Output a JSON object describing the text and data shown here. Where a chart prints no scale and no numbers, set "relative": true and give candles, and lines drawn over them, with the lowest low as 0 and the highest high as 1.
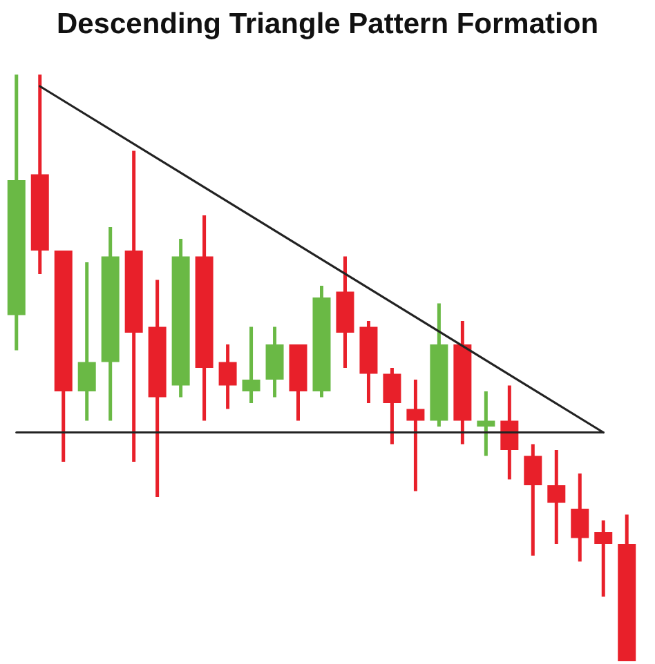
{
  "chart_data": {
    "type": "candlestick",
    "title": "Descending Triangle Pattern Formation",
    "relative": true,
    "categories": [
      null,
      null,
      null,
      null,
      null,
      null,
      null,
      null,
      null,
      null,
      null,
      null,
      null,
      null,
      null,
      null,
      null,
      null,
      null,
      null,
      null,
      null,
      null,
      null,
      null,
      null,
      null
    ],
    "ohlc": [
      [
        0.59,
        1,
        0.53,
        0.82
      ],
      [
        0.83,
        1,
        0.66,
        0.7
      ],
      [
        0.7,
        0.7,
        0.34,
        0.46
      ],
      [
        0.46,
        0.68,
        0.41,
        0.51
      ],
      [
        0.51,
        0.74,
        0.41,
        0.69
      ],
      [
        0.7,
        0.87,
        0.34,
        0.56
      ],
      [
        0.57,
        0.65,
        0.28,
        0.45
      ],
      [
        0.47,
        0.72,
        0.45,
        0.69
      ],
      [
        0.69,
        0.76,
        0.41,
        0.5
      ],
      [
        0.51,
        0.54,
        0.43,
        0.47
      ],
      [
        0.46,
        0.57,
        0.44,
        0.48
      ],
      [
        0.48,
        0.57,
        0.45,
        0.54
      ],
      [
        0.54,
        0.54,
        0.41,
        0.46
      ],
      [
        0.46,
        0.64,
        0.45,
        0.62
      ],
      [
        0.63,
        0.69,
        0.5,
        0.56
      ],
      [
        0.57,
        0.58,
        0.44,
        0.49
      ],
      [
        0.49,
        0.5,
        0.37,
        0.44
      ],
      [
        0.43,
        0.48,
        0.29,
        0.41
      ],
      [
        0.41,
        0.61,
        0.4,
        0.54
      ],
      [
        0.54,
        0.58,
        0.37,
        0.41
      ],
      [
        0.4,
        0.46,
        0.35,
        0.41
      ],
      [
        0.41,
        0.47,
        0.31,
        0.36
      ],
      [
        0.35,
        0.37,
        0.18,
        0.3
      ],
      [
        0.3,
        0.36,
        0.2,
        0.27
      ],
      [
        0.26,
        0.32,
        0.17,
        0.21
      ],
      [
        0.22,
        0.24,
        0.11,
        0.2
      ],
      [
        0.2,
        0.25,
        0,
        0
      ]
    ],
    "colors": [
      "#6ab945",
      "#e8202a",
      "#e8202a",
      "#6ab945",
      "#6ab945",
      "#e8202a",
      "#e8202a",
      "#6ab945",
      "#e8202a",
      "#e8202a",
      "#6ab945",
      "#6ab945",
      "#e8202a",
      "#6ab945",
      "#e8202a",
      "#e8202a",
      "#e8202a",
      "#e8202a",
      "#6ab945",
      "#e8202a",
      "#6ab945",
      "#e8202a",
      "#e8202a",
      "#e8202a",
      "#e8202a",
      "#e8202a",
      "#e8202a"
    ],
    "series": [
      {
        "type": "line",
        "color": "#222222",
        "values": [
          null,
          0.98,
          null,
          null,
          null,
          null,
          null,
          null,
          null,
          null,
          null,
          null,
          null,
          null,
          null,
          null,
          null,
          null,
          null,
          null,
          null,
          null,
          null,
          null,
          null,
          0.39,
          null
        ]
      },
      {
        "type": "line",
        "color": "#222222",
        "values": [
          0.39,
          null,
          null,
          null,
          null,
          null,
          null,
          null,
          null,
          null,
          null,
          null,
          null,
          null,
          null,
          null,
          null,
          null,
          null,
          null,
          null,
          null,
          null,
          null,
          null,
          0.39,
          null
        ]
      }
    ]
  }
}
